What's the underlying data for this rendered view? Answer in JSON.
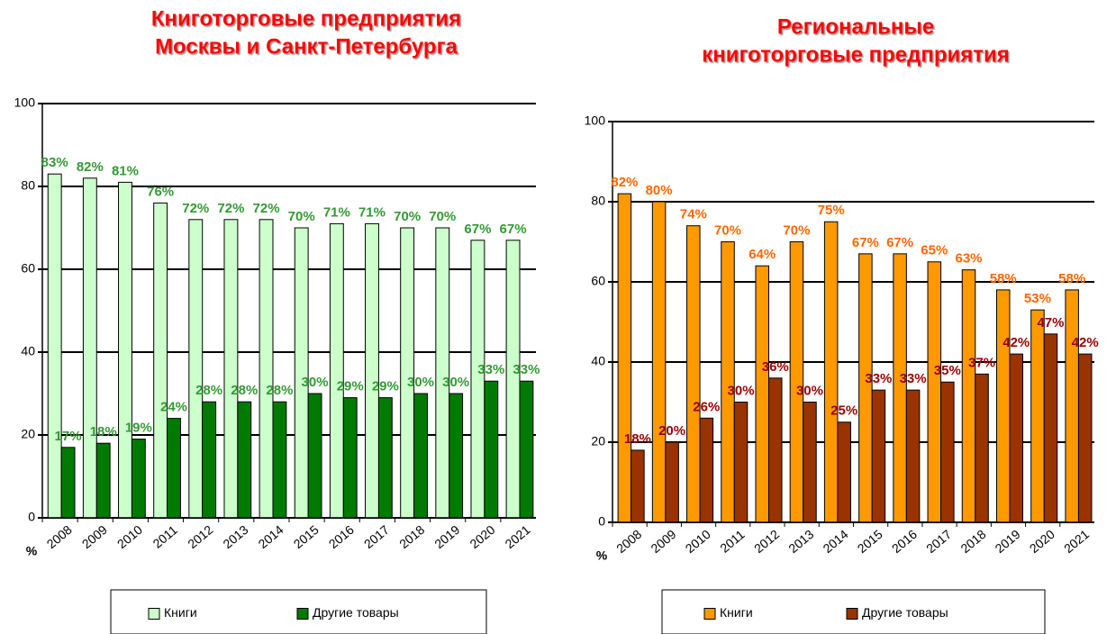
{
  "chart_data": [
    {
      "type": "bar",
      "title": [
        "Книготорговые предприятия",
        "Москвы и Санкт-Петербурга"
      ],
      "y_label": "%",
      "categories": [
        "2008",
        "2009",
        "2010",
        "2011",
        "2012",
        "2013",
        "2014",
        "2015",
        "2016",
        "2017",
        "2018",
        "2019",
        "2020",
        "2021"
      ],
      "series": [
        {
          "name": "Книги",
          "color": "#ccffcc",
          "label_color": "#339933",
          "values": [
            83,
            82,
            81,
            76,
            72,
            72,
            72,
            70,
            71,
            71,
            70,
            70,
            67,
            67
          ],
          "value_labels": [
            "83%",
            "82%",
            "81%",
            "76%",
            "72%",
            "72%",
            "72%",
            "70%",
            "71%",
            "71%",
            "70%",
            "70%",
            "67%",
            "67%"
          ]
        },
        {
          "name": "Другие товары",
          "color": "#007a00",
          "label_color": "#339933",
          "values": [
            17,
            18,
            19,
            24,
            28,
            28,
            28,
            30,
            29,
            29,
            30,
            30,
            33,
            33
          ],
          "value_labels": [
            "17%",
            "18%",
            "19%",
            "24%",
            "28%",
            "28%",
            "28%",
            "30%",
            "29%",
            "29%",
            "30%",
            "30%",
            "33%",
            "33%"
          ]
        }
      ],
      "ylim": [
        0,
        100
      ],
      "yticks": [
        0,
        20,
        40,
        60,
        80,
        100
      ],
      "grid": true,
      "legend": "bottom"
    },
    {
      "type": "bar",
      "title": [
        "Региональные",
        "книготорговые предприятия"
      ],
      "y_label": "%",
      "categories": [
        "2008",
        "2009",
        "2010",
        "2011",
        "2012",
        "2013",
        "2014",
        "2015",
        "2016",
        "2017",
        "2018",
        "2019",
        "2020",
        "2021"
      ],
      "series": [
        {
          "name": "Книги",
          "color": "#ff9900",
          "label_color": "#ff6600",
          "values": [
            82,
            80,
            74,
            70,
            64,
            70,
            75,
            67,
            67,
            65,
            63,
            58,
            53,
            58
          ],
          "value_labels": [
            "82%",
            "80%",
            "74%",
            "70%",
            "64%",
            "70%",
            "75%",
            "67%",
            "67%",
            "65%",
            "63%",
            "58%",
            "53%",
            "58%"
          ]
        },
        {
          "name": "Другие товары",
          "color": "#993300",
          "label_color": "#990000",
          "values": [
            18,
            20,
            26,
            30,
            36,
            30,
            25,
            33,
            33,
            35,
            37,
            42,
            47,
            42
          ],
          "value_labels": [
            "18%",
            "20%",
            "26%",
            "30%",
            "36%",
            "30%",
            "25%",
            "33%",
            "33%",
            "35%",
            "37%",
            "42%",
            "47%",
            "42%"
          ]
        }
      ],
      "ylim": [
        0,
        100
      ],
      "yticks": [
        0,
        20,
        40,
        60,
        80,
        100
      ],
      "grid": true,
      "legend": "bottom"
    }
  ]
}
